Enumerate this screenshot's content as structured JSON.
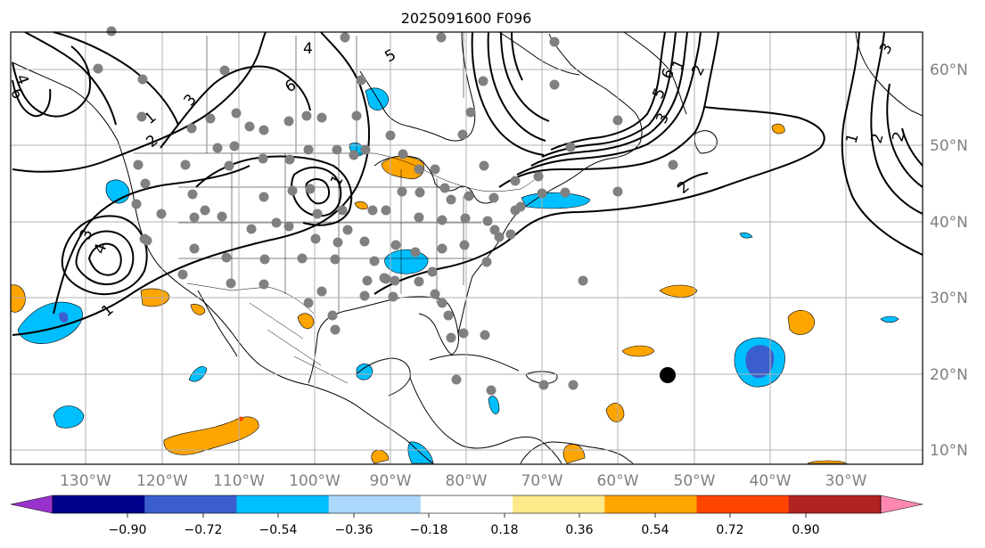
{
  "title": "2025091600 F096",
  "map": {
    "lon_labels": [
      "130°W",
      "120°W",
      "110°W",
      "100°W",
      "90°W",
      "80°W",
      "70°W",
      "60°W",
      "50°W",
      "40°W",
      "30°W"
    ],
    "lat_labels": [
      "60°N",
      "50°N",
      "40°N",
      "30°N",
      "20°N",
      "10°N"
    ],
    "contour_labels": [
      "4",
      "6",
      "3",
      "1",
      "2",
      "4",
      "6",
      "5",
      "2",
      "1",
      "5",
      "6",
      "1",
      "2",
      "3",
      "2",
      "3",
      "4",
      "1",
      "1",
      "2",
      "3"
    ],
    "feature_marker": "black-dot-storm-center",
    "station_marker_color": "#808080"
  },
  "colorbar": {
    "tick_labels": [
      "−0.90",
      "−0.72",
      "−0.54",
      "−0.36",
      "−0.18",
      "0.18",
      "0.36",
      "0.54",
      "0.72",
      "0.90"
    ],
    "colors": [
      "#9932cc",
      "#00008b",
      "#3a5fcd",
      "#00bfff",
      "#add8fe",
      "#ffffff",
      "#fde98a",
      "#ffa500",
      "#ff4500",
      "#b22222",
      "#ff88b0"
    ]
  }
}
